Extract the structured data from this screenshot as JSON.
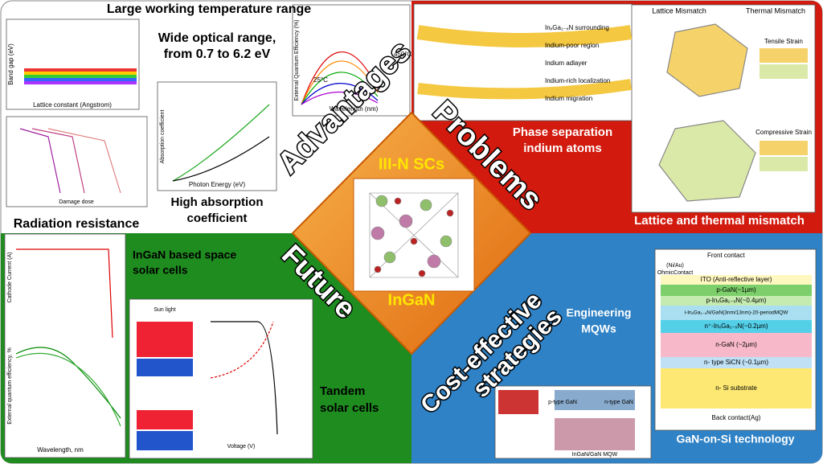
{
  "advantages": {
    "label": "Advantages",
    "items": [
      "Large working temperature range",
      "Wide optical range,",
      "from 0.7 to 6.2 eV",
      "High absorption",
      "coefficient",
      "Radiation resistance"
    ],
    "plot_labels": [
      "Lattice constant (Angstrom)",
      "Band gap (eV)",
      "Wavelength (nm)",
      "External Quantum Efficiency (%)",
      "450°C",
      "25°C",
      "Photon Energy (eV)",
      "Absorption coefficient",
      "Damage dose"
    ]
  },
  "problems": {
    "label": "Problems",
    "items": [
      "Phase separation",
      "indium atoms",
      "Lattice and thermal mismatch"
    ],
    "panel_titles": [
      "Lattice Mismatch",
      "Thermal Mismatch",
      "Tensile Strain",
      "Compressive Strain"
    ],
    "legend": [
      "InₓGa₁₋ₓN surrounding",
      "Indium-poor region",
      "Indium adlayer",
      "Indium-rich localization",
      "Indium migration"
    ]
  },
  "center": {
    "title": "III-N SCs",
    "subtitle": "InGaN"
  },
  "future": {
    "label": "Future",
    "items": [
      "InGaN based space",
      "solar cells",
      "Tandem",
      "solar cells"
    ],
    "plot_labels": [
      "Cathode Current (A)",
      "External quantum efficiency, %",
      "Wavelength, nm",
      "Sun light",
      "Voltage (V)"
    ]
  },
  "strategies": {
    "label_lines": [
      "Cost-effective",
      "strategies"
    ],
    "items": [
      "Engineering",
      "MQWs",
      "GaN-on-Si technology"
    ],
    "stack": {
      "top": [
        "Front contact",
        "(Ni/Au)",
        "OhmicContact"
      ],
      "layers": [
        "ITO (Anti-reflective layer)",
        "p-GaN(~1µm)",
        "p-InₓGa₁₋ₓN(~0.4µm)",
        "i-InₓGa₁₋ₓN/GaN(3nm/13nm)-20-periodMQW",
        "n⁺-InₓGa₁₋ₓN(~0.2µm)",
        "n-GaN (~2µm)",
        "n- type SiCN (~0.1µm)",
        "n- Si substrate"
      ],
      "bottom": "Back contact(Ag)"
    },
    "mqw_labels": [
      "p-type GaN",
      "n-type GaN",
      "InGaN/GaN MQW"
    ]
  }
}
